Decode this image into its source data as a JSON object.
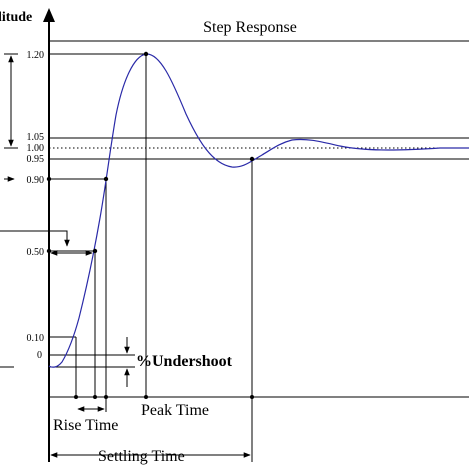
{
  "title": "Step Response",
  "y_axis_label": "litude",
  "ticks": {
    "t120": "1.20",
    "t105": "1.05",
    "t100": "1.00",
    "t095": "0.95",
    "t090": "0.90",
    "t050": "0.50",
    "t010": "0.10",
    "t0": "0"
  },
  "annotations": {
    "undershoot": "%Undershoot",
    "rise_time": "Rise Time",
    "peak_time": "Peak Time",
    "settling_time": "Settling Time"
  },
  "colors": {
    "curve": "#2a2aa8",
    "lines": "#000000"
  }
}
